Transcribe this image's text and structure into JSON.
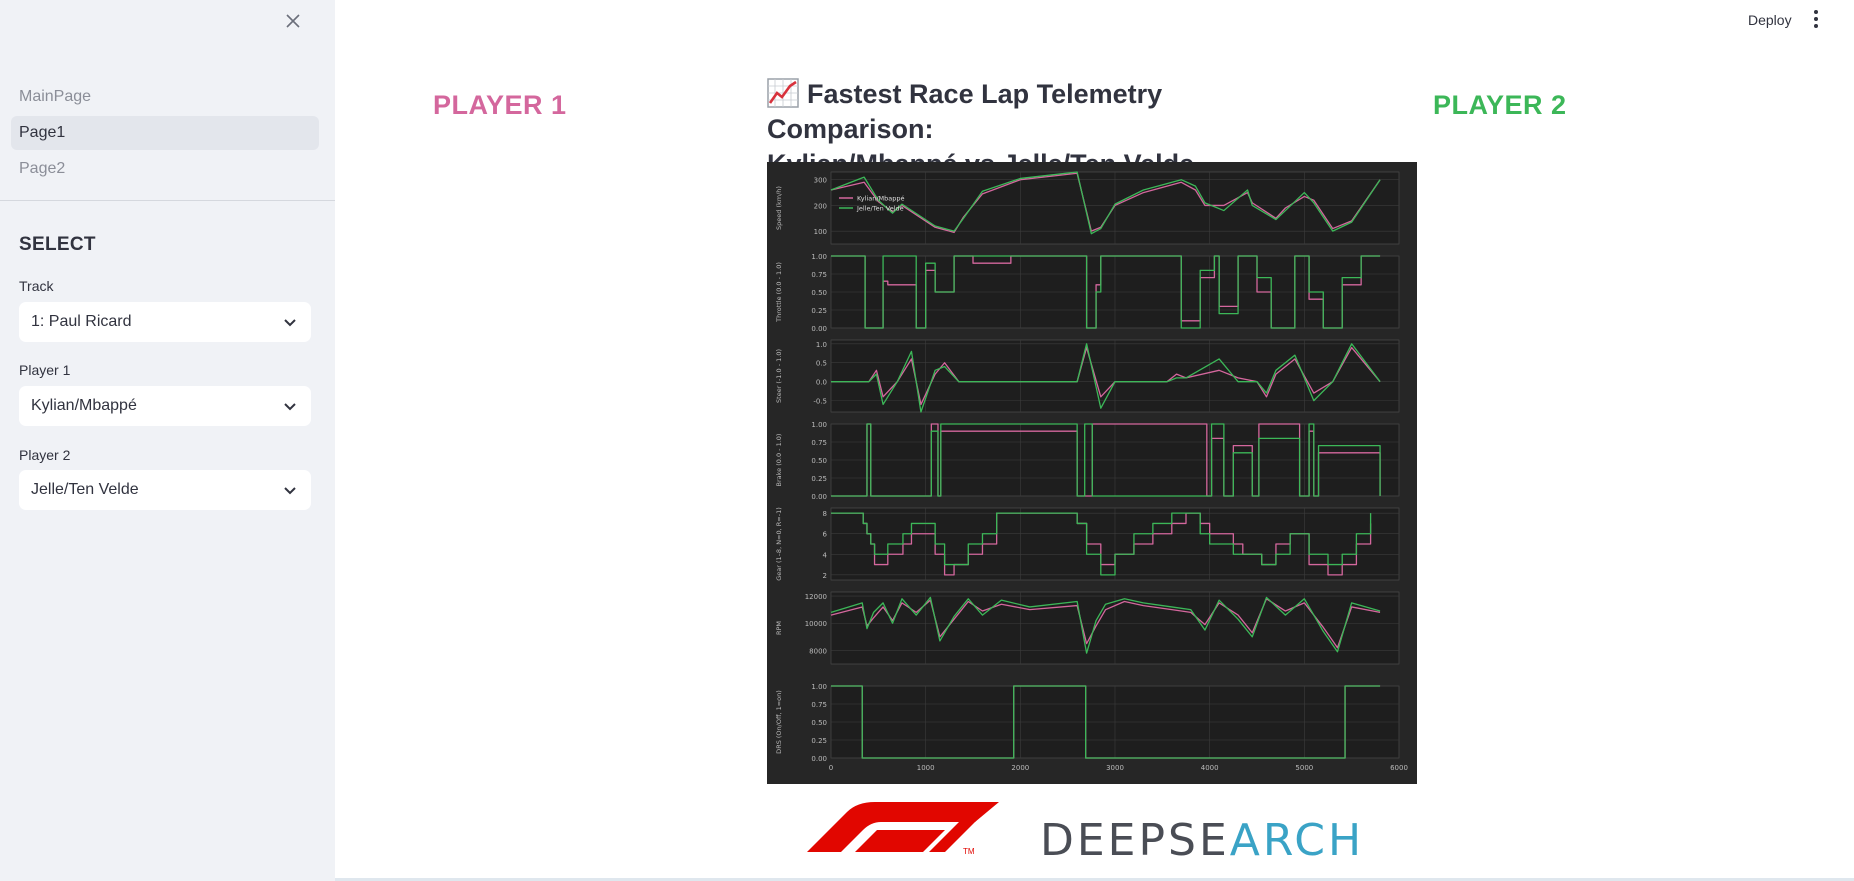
{
  "sidebar": {
    "nav": [
      {
        "label": "MainPage",
        "active": false
      },
      {
        "label": "Page1",
        "active": true
      },
      {
        "label": "Page2",
        "active": false
      }
    ],
    "section_title": "SELECT",
    "track": {
      "label": "Track",
      "value": "1: Paul Ricard"
    },
    "player1": {
      "label": "Player 1",
      "value": "Kylian/Mbappé"
    },
    "player2": {
      "label": "Player 2",
      "value": "Jelle/Ten Velde"
    }
  },
  "header": {
    "deploy_label": "Deploy"
  },
  "main": {
    "player1_label": "PLAYER 1",
    "player2_label": "PLAYER 2",
    "title_line1": "Fastest Race Lap Telemetry Comparison:",
    "title_line2": "Kylian/Mbappé vs Jelle/Ten Velde"
  },
  "logos": {
    "f1": "F1",
    "deepsearch_dark": "DEEPSE",
    "deepsearch_blue": "ARCH"
  },
  "colors": {
    "player1": "#d4679d",
    "player2": "#3cb758",
    "chart_bg": "#262626"
  },
  "chart_data": {
    "type": "line",
    "xlim": [
      0,
      6000
    ],
    "x_ticks": [
      "0",
      "1000",
      "2000",
      "3000",
      "4000",
      "5000",
      "6000"
    ],
    "legend": {
      "placement": "top-left",
      "entries": [
        "Kylian/Mbappé",
        "Jelle/Ten Velde"
      ]
    },
    "grid": true,
    "panels": [
      {
        "ylabel": "Speed (km/h)",
        "ylim": [
          50,
          330
        ],
        "y_ticks": [
          100,
          200,
          300
        ],
        "step": false,
        "x": [
          0,
          350,
          500,
          650,
          750,
          1100,
          1300,
          1400,
          1600,
          2000,
          2600,
          2750,
          2850,
          3000,
          3300,
          3700,
          3850,
          3950,
          4150,
          4400,
          4450,
          4700,
          4800,
          5000,
          5100,
          5300,
          5500,
          5800
        ],
        "series": [
          {
            "name": "Kylian/Mbappé",
            "values": [
              260,
              290,
              215,
              175,
              200,
              115,
              95,
              155,
              245,
              300,
              325,
              100,
              115,
              200,
              250,
              290,
              260,
              200,
              200,
              250,
              210,
              150,
              190,
              235,
              220,
              110,
              140,
              300
            ]
          },
          {
            "name": "Jelle/Ten Velde",
            "values": [
              260,
              310,
              220,
              170,
              205,
              120,
              100,
              150,
              255,
              305,
              330,
              90,
              110,
              205,
              260,
              300,
              275,
              210,
              180,
              260,
              200,
              145,
              180,
              250,
              210,
              100,
              135,
              300
            ]
          }
        ]
      },
      {
        "ylabel": "Throttle (0.0 - 1.0)",
        "ylim": [
          0,
          1
        ],
        "y_ticks": [
          0.0,
          0.25,
          0.5,
          0.75,
          1.0
        ],
        "step": true,
        "x": [
          0,
          300,
          360,
          550,
          600,
          900,
          1000,
          1100,
          1300,
          1500,
          1900,
          2650,
          2700,
          2800,
          2850,
          3600,
          3700,
          3900,
          4050,
          4100,
          4300,
          4500,
          4650,
          4900,
          5050,
          5200,
          5400,
          5600,
          5800
        ],
        "series": [
          {
            "name": "Kylian/Mbappé",
            "values": [
              1,
              1,
              0,
              0.65,
              0.6,
              0,
              0.8,
              0.5,
              1,
              0.9,
              1,
              1,
              0,
              0.6,
              1,
              1,
              0.1,
              0.7,
              1,
              0.3,
              1,
              0.5,
              0,
              1,
              0.4,
              0,
              0.6,
              1,
              1
            ]
          },
          {
            "name": "Jelle/Ten Velde",
            "values": [
              1,
              1,
              0,
              1,
              1,
              0,
              0.9,
              0.5,
              1,
              1,
              1,
              1,
              0,
              0.5,
              1,
              1,
              0,
              0.8,
              1,
              0.2,
              1,
              0.7,
              0,
              1,
              0.5,
              0,
              0.7,
              1,
              1
            ]
          }
        ]
      },
      {
        "ylabel": "Steer (-1.0 - 1.0)",
        "ylim": [
          -0.8,
          1.1
        ],
        "y_ticks": [
          -0.5,
          0.0,
          0.5,
          1.0
        ],
        "step": false,
        "x": [
          0,
          400,
          480,
          550,
          700,
          850,
          950,
          1100,
          1200,
          1350,
          1800,
          2600,
          2700,
          2850,
          3000,
          3550,
          3650,
          3750,
          4100,
          4300,
          4500,
          4600,
          4700,
          4900,
          5100,
          5300,
          5500,
          5800
        ],
        "series": [
          {
            "name": "Kylian/Mbappé",
            "values": [
              0,
              0,
              0.3,
              -0.4,
              0,
              0.6,
              -0.6,
              0.2,
              0.5,
              0,
              0,
              0,
              0.9,
              -0.4,
              0,
              0,
              0.2,
              0.1,
              0.3,
              0.1,
              0,
              -0.4,
              0.2,
              0.6,
              -0.3,
              0,
              0.9,
              0
            ]
          },
          {
            "name": "Jelle/Ten Velde",
            "values": [
              0,
              0,
              0.2,
              -0.6,
              0,
              0.8,
              -0.8,
              0.3,
              0.4,
              0,
              0,
              0,
              1.0,
              -0.7,
              0,
              0,
              0.1,
              0.1,
              0.6,
              0,
              0,
              -0.3,
              0.3,
              0.7,
              -0.5,
              0,
              1.0,
              0
            ]
          }
        ]
      },
      {
        "ylabel": "Brake (0.0 - 1.0)",
        "ylim": [
          0,
          1
        ],
        "y_ticks": [
          0.0,
          0.25,
          0.5,
          0.75,
          1.0
        ],
        "step": true,
        "x": [
          0,
          320,
          380,
          420,
          1030,
          1060,
          1130,
          1160,
          2600,
          2680,
          2760,
          3970,
          4020,
          4150,
          4250,
          4450,
          4520,
          4950,
          5050,
          5100,
          5150,
          5800
        ],
        "series": [
          {
            "name": "Kylian/Mbappé",
            "values": [
              0,
              0,
              1,
              0,
              0,
              1,
              0,
              0.9,
              0,
              0,
              1,
              0,
              0.8,
              0,
              0.7,
              0,
              1,
              0,
              0.9,
              0,
              0.6,
              0
            ]
          },
          {
            "name": "Jelle/Ten Velde",
            "values": [
              0,
              0,
              1,
              0,
              0,
              0.9,
              0,
              1,
              0,
              1,
              0,
              0,
              1,
              0,
              0.6,
              0,
              0.8,
              0,
              1,
              0,
              0.7,
              0
            ]
          }
        ]
      },
      {
        "ylabel": "Gear (1–8, N=0, R=-1)",
        "ylim": [
          1.5,
          8.5
        ],
        "y_ticks": [
          2,
          4,
          6,
          8
        ],
        "step": true,
        "x": [
          0,
          340,
          380,
          420,
          460,
          600,
          760,
          850,
          1100,
          1200,
          1300,
          1450,
          1600,
          1750,
          2600,
          2700,
          2850,
          3000,
          3200,
          3400,
          3600,
          3750,
          3900,
          4000,
          4250,
          4350,
          4550,
          4700,
          4850,
          5050,
          5250,
          5400,
          5550,
          5700
        ],
        "series": [
          {
            "name": "Kylian/Mbappé",
            "values": [
              8,
              7,
              6,
              5,
              3,
              4,
              5,
              6,
              4,
              2,
              3,
              4,
              5,
              8,
              7,
              5,
              3,
              4,
              5,
              6,
              7,
              8,
              7,
              6,
              5,
              4,
              3,
              5,
              6,
              3,
              2,
              3,
              5,
              7
            ]
          },
          {
            "name": "Jelle/Ten Velde",
            "values": [
              8,
              7,
              6,
              5,
              4,
              5,
              6,
              7,
              5,
              3,
              3,
              5,
              6,
              8,
              7,
              4,
              2,
              4,
              6,
              7,
              8,
              8,
              6,
              5,
              4,
              4,
              3,
              4,
              6,
              4,
              3,
              4,
              6,
              8
            ]
          }
        ]
      },
      {
        "ylabel": "RPM",
        "ylim": [
          7000,
          12300
        ],
        "y_ticks": [
          8000,
          10000,
          12000
        ],
        "step": false,
        "x": [
          0,
          330,
          380,
          450,
          550,
          650,
          750,
          900,
          1050,
          1150,
          1300,
          1450,
          1600,
          1800,
          2100,
          2600,
          2700,
          2800,
          2900,
          3100,
          3300,
          3600,
          3800,
          3950,
          4100,
          4300,
          4450,
          4600,
          4800,
          5000,
          5200,
          5350,
          5500,
          5800
        ],
        "series": [
          {
            "name": "Kylian/Mbappé",
            "values": [
              10600,
              11200,
              9800,
              10400,
              11200,
              10200,
              11500,
              10800,
              11700,
              9000,
              10300,
              11600,
              10900,
              11400,
              11000,
              11300,
              8500,
              9800,
              11000,
              11600,
              11300,
              11000,
              10800,
              9900,
              11500,
              10600,
              9300,
              11800,
              10900,
              11500,
              9700,
              8200,
              11200,
              10800
            ]
          },
          {
            "name": "Jelle/Ten Velde",
            "values": [
              10800,
              11500,
              9600,
              10800,
              11500,
              10000,
              11800,
              10600,
              11900,
              8700,
              10500,
              11800,
              10600,
              11700,
              11200,
              11600,
              7800,
              10200,
              11400,
              11800,
              11500,
              11200,
              11000,
              9500,
              11700,
              10300,
              9000,
              11900,
              10600,
              11800,
              9400,
              7900,
              11500,
              10900
            ]
          }
        ]
      },
      {
        "ylabel": "DRS (On/Off, 1=on)",
        "ylim": [
          0,
          1
        ],
        "y_ticks": [
          0.0,
          0.25,
          0.5,
          0.75,
          1.0
        ],
        "step": true,
        "x": [
          0,
          330,
          1930,
          2650,
          2690,
          5430,
          5800
        ],
        "series": [
          {
            "name": "Kylian/Mbappé",
            "values": [
              1,
              0,
              1,
              1,
              0,
              1,
              1
            ]
          },
          {
            "name": "Jelle/Ten Velde",
            "values": [
              1,
              0,
              1,
              1,
              0,
              1,
              1
            ]
          }
        ]
      }
    ]
  }
}
